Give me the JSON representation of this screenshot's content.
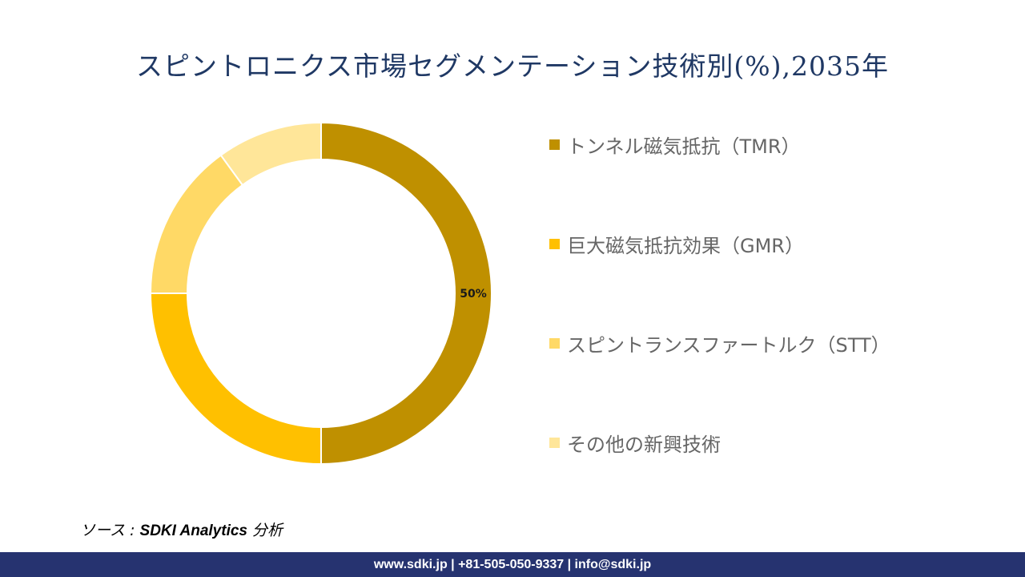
{
  "chart_data": {
    "type": "pie",
    "variant": "donut",
    "title": "スピントロニクス市場セグメンテーション技術別(%),2035年",
    "categories": [
      "トンネル磁気抵抗（TMR）",
      "巨大磁気抵抗効果（GMR）",
      "スピントランスファートルク（STT）",
      "その他の新興技術"
    ],
    "values": [
      50,
      25,
      15,
      10
    ],
    "colors": [
      "#BF9000",
      "#FFC000",
      "#FFD966",
      "#FFE699"
    ],
    "data_labels": [
      "50%",
      "",
      "",
      ""
    ],
    "legend_position": "right"
  },
  "source": {
    "prefix": "ソース : ",
    "name": "SDKI Analytics",
    "suffix": " 分析"
  },
  "footer": {
    "contact": "www.sdki.jp | +81-505-050-9337 | info@sdki.jp"
  }
}
